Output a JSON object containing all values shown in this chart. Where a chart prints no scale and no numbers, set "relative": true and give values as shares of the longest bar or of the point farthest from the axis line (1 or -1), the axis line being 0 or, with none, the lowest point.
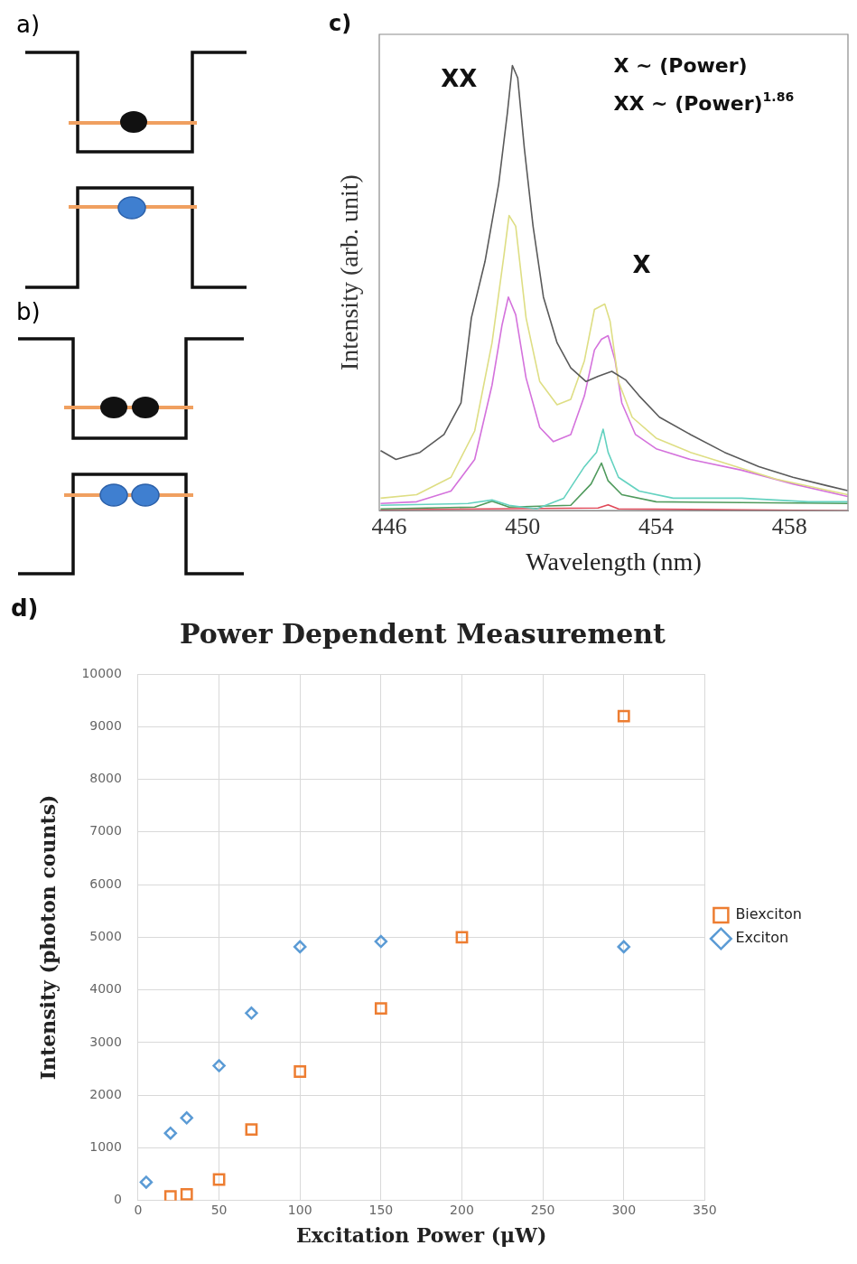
{
  "chart_data": [
    {
      "type": "other",
      "annotations": [
        "a)",
        "b)"
      ]
    },
    {
      "type": "line",
      "xlabel": "Wavelength (nm)",
      "ylabel": "Intensity (arb. unit)",
      "relative": true,
      "xlim": [
        445.7,
        459.75
      ],
      "xticks": [
        446,
        450,
        454,
        458
      ],
      "grid": false,
      "legend": false,
      "marker": "none",
      "line_style": "solid",
      "annotations": [
        "c)",
        "X ~ (Power)",
        "XX ~ (Power)$^{1.86}$",
        "XX",
        "X"
      ],
      "series": [
        {
          "color": "#5a5a5a",
          "x": [
            445.74,
            446.2,
            446.92,
            447.64,
            448.15,
            448.46,
            448.87,
            449.28,
            449.54,
            449.69,
            449.85,
            450.05,
            450.31,
            450.62,
            451.03,
            451.44,
            451.9,
            452.26,
            452.67,
            453.08,
            453.49,
            454.1,
            455.03,
            456.05,
            457.08,
            458.1,
            459.13,
            459.74
          ],
          "values": [
            0.135,
            0.115,
            0.131,
            0.171,
            0.242,
            0.433,
            0.56,
            0.734,
            0.893,
            1,
            0.972,
            0.813,
            0.639,
            0.48,
            0.377,
            0.321,
            0.29,
            0.302,
            0.313,
            0.294,
            0.258,
            0.21,
            0.171,
            0.131,
            0.099,
            0.075,
            0.056,
            0.045
          ]
        },
        {
          "color": "#dede84",
          "x": [
            445.74,
            446.82,
            447.85,
            448.56,
            449.08,
            449.44,
            449.59,
            449.79,
            450.1,
            450.51,
            451.03,
            451.44,
            451.85,
            452.15,
            452.46,
            452.62,
            452.87,
            453.28,
            454,
            455.03,
            456.05,
            457.59,
            459.74
          ],
          "values": [
            0.028,
            0.036,
            0.075,
            0.179,
            0.377,
            0.575,
            0.663,
            0.639,
            0.433,
            0.29,
            0.238,
            0.25,
            0.337,
            0.452,
            0.464,
            0.425,
            0.29,
            0.21,
            0.163,
            0.131,
            0.107,
            0.071,
            0.036
          ]
        },
        {
          "color": "#d472dc",
          "x": [
            445.74,
            446.82,
            447.85,
            448.56,
            449.08,
            449.38,
            449.57,
            449.79,
            450.1,
            450.51,
            450.92,
            451.44,
            451.85,
            452.15,
            452.36,
            452.56,
            452.77,
            452.97,
            453.38,
            454,
            455.03,
            456.56,
            458.1,
            459.74
          ],
          "values": [
            0.016,
            0.02,
            0.044,
            0.115,
            0.282,
            0.417,
            0.48,
            0.44,
            0.298,
            0.187,
            0.155,
            0.171,
            0.258,
            0.361,
            0.385,
            0.393,
            0.337,
            0.242,
            0.171,
            0.139,
            0.115,
            0.091,
            0.06,
            0.032
          ]
        },
        {
          "color": "#64d2c0",
          "x": [
            445.74,
            448.36,
            449.08,
            449.59,
            450.41,
            451.23,
            451.85,
            452.21,
            452.41,
            452.56,
            452.87,
            453.49,
            454.51,
            456.56,
            458.56,
            459.74
          ],
          "values": [
            0.012,
            0.016,
            0.024,
            0.012,
            0.004,
            0.028,
            0.099,
            0.131,
            0.183,
            0.131,
            0.075,
            0.044,
            0.028,
            0.028,
            0.02,
            0.02
          ]
        },
        {
          "color": "#4f9a5c",
          "x": [
            445.74,
            448.56,
            449.08,
            449.59,
            451.44,
            452.05,
            452.36,
            452.56,
            452.97,
            454,
            459.74
          ],
          "values": [
            0.004,
            0.008,
            0.021,
            0.008,
            0.012,
            0.06,
            0.107,
            0.067,
            0.036,
            0.02,
            0.016
          ]
        },
        {
          "color": "#e04858",
          "x": [
            445.74,
            452.26,
            452.56,
            452.87,
            459.74
          ],
          "values": [
            0.002,
            0.006,
            0.013,
            0.004,
            0
          ]
        }
      ]
    },
    {
      "type": "scatter",
      "title": "Power Dependent Measurement",
      "xlabel": "Excitation Power (μW)",
      "ylabel": "Intensity (photon counts)",
      "xlim": [
        0,
        350
      ],
      "xticks": [
        0,
        50,
        100,
        150,
        200,
        250,
        300,
        350
      ],
      "ylim": [
        0,
        10000
      ],
      "yticks": [
        0,
        1000,
        2000,
        3000,
        4000,
        5000,
        6000,
        7000,
        8000,
        9000,
        10000
      ],
      "grid": true,
      "legend": "right",
      "annotations": [
        "d)"
      ],
      "series": [
        {
          "name": "Biexciton",
          "color": "#ed7d31",
          "marker": "square",
          "x": [
            20,
            30,
            50,
            70,
            100,
            150,
            200,
            300
          ],
          "values": [
            80,
            120,
            400,
            1350,
            2450,
            3650,
            5000,
            9200
          ]
        },
        {
          "name": "Exciton",
          "color": "#5b9bd5",
          "marker": "diamond",
          "x": [
            5,
            20,
            30,
            50,
            70,
            100,
            150,
            300
          ],
          "values": [
            350,
            1280,
            1570,
            2560,
            3560,
            4820,
            4920,
            4820
          ]
        }
      ]
    }
  ]
}
